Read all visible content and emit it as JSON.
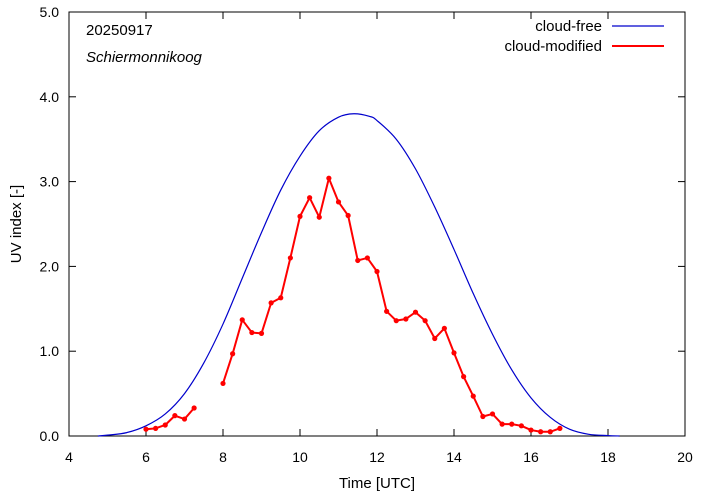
{
  "chart_data": {
    "type": "line",
    "annotations": [
      "20250917",
      "Schiermonnikoog"
    ],
    "xlabel": "Time  [UTC]",
    "ylabel": "UV index  [-]",
    "xlim": [
      4,
      20
    ],
    "ylim": [
      0,
      5
    ],
    "xticks": [
      4,
      6,
      8,
      10,
      12,
      14,
      16,
      18,
      20
    ],
    "xtick_labels": [
      "4",
      "6",
      "8",
      "10",
      "12",
      "14",
      "16",
      "18",
      "20"
    ],
    "yticks": [
      0,
      1,
      2,
      3,
      4,
      5
    ],
    "ytick_labels": [
      "0.0",
      "1.0",
      "2.0",
      "3.0",
      "4.0",
      "5.0"
    ],
    "grid": false,
    "legend_position": "top-right",
    "series": [
      {
        "name": "cloud-free",
        "color": "#0000cc",
        "markers": false,
        "x": [
          4.75,
          5.0,
          5.5,
          6.0,
          6.5,
          7.0,
          7.5,
          8.0,
          8.5,
          9.0,
          9.5,
          10.0,
          10.5,
          11.0,
          11.4,
          11.8,
          12.0,
          12.5,
          13.0,
          13.5,
          14.0,
          14.5,
          15.0,
          15.5,
          16.0,
          16.5,
          17.0,
          17.5,
          18.0,
          18.3
        ],
        "y": [
          0.0,
          0.01,
          0.04,
          0.12,
          0.26,
          0.5,
          0.86,
          1.32,
          1.86,
          2.4,
          2.9,
          3.3,
          3.6,
          3.76,
          3.8,
          3.77,
          3.72,
          3.5,
          3.15,
          2.7,
          2.2,
          1.68,
          1.2,
          0.78,
          0.45,
          0.22,
          0.08,
          0.02,
          0.005,
          0.0
        ]
      },
      {
        "name": "cloud-modified",
        "color": "#ff0000",
        "markers": true,
        "segments": [
          {
            "x": [
              6.0,
              6.25,
              6.5,
              6.75,
              7.0,
              7.25
            ],
            "y": [
              0.08,
              0.09,
              0.13,
              0.24,
              0.2,
              0.33
            ]
          },
          {
            "x": [
              8.0,
              8.25,
              8.5,
              8.75,
              9.0,
              9.25,
              9.5,
              9.75,
              10.0,
              10.25,
              10.5,
              10.75,
              11.0,
              11.25,
              11.5,
              11.75,
              12.0,
              12.25,
              12.5,
              12.75,
              13.0,
              13.25,
              13.5,
              13.75,
              14.0,
              14.25,
              14.5,
              14.75,
              15.0,
              15.25,
              15.5,
              15.75,
              16.0,
              16.25,
              16.5,
              16.75
            ],
            "y": [
              0.62,
              0.97,
              1.37,
              1.22,
              1.21,
              1.57,
              1.63,
              2.1,
              2.59,
              2.81,
              2.58,
              3.04,
              2.76,
              2.6,
              2.07,
              2.1,
              1.94,
              1.47,
              1.36,
              1.38,
              1.46,
              1.36,
              1.15,
              1.27,
              0.98,
              0.7,
              0.47,
              0.23,
              0.26,
              0.14,
              0.14,
              0.12,
              0.07,
              0.05,
              0.05,
              0.09
            ]
          }
        ]
      }
    ]
  }
}
